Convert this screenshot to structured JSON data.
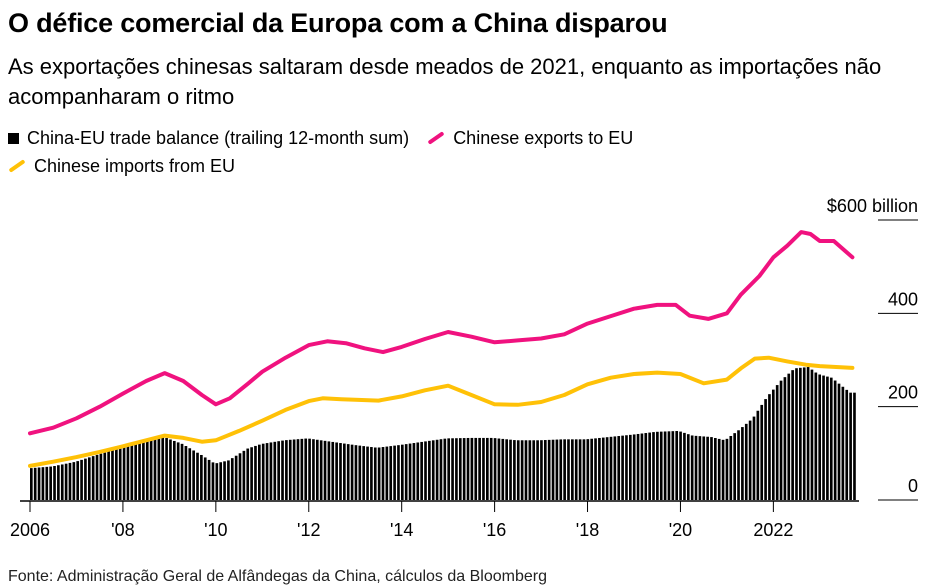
{
  "title": "O défice comercial da Europa com a China disparou",
  "subtitle": "As exportações chinesas saltaram desde meados de 2021, enquanto as importações não acompanharam o ritmo",
  "source": "Fonte: Administração Geral de Alfândegas da China, cálculos da Bloomberg",
  "colors": {
    "balance": "#000000",
    "exports": "#f0127f",
    "imports": "#ffc107"
  },
  "chart_data": {
    "type": "line",
    "bar_series_name": "China-EU trade balance (trailing 12-month sum)",
    "x_range": [
      2006.0,
      2023.8
    ],
    "ylim": [
      0,
      600
    ],
    "y_ticks": [
      {
        "value": 600,
        "label": "$600 billion"
      },
      {
        "value": 400,
        "label": "400"
      },
      {
        "value": 200,
        "label": "200"
      },
      {
        "value": 0,
        "label": "0"
      }
    ],
    "x_ticks": [
      {
        "value": 2006,
        "label": "2006"
      },
      {
        "value": 2008,
        "label": "'08"
      },
      {
        "value": 2010,
        "label": "'10"
      },
      {
        "value": 2012,
        "label": "'12"
      },
      {
        "value": 2014,
        "label": "'14"
      },
      {
        "value": 2016,
        "label": "'16"
      },
      {
        "value": 2018,
        "label": "'18"
      },
      {
        "value": 2020,
        "label": "'20"
      },
      {
        "value": 2022,
        "label": "2022"
      }
    ],
    "series": [
      {
        "name": "Chinese exports to EU",
        "points": [
          [
            2006.0,
            143
          ],
          [
            2006.5,
            155
          ],
          [
            2007.0,
            175
          ],
          [
            2007.5,
            200
          ],
          [
            2008.0,
            228
          ],
          [
            2008.5,
            255
          ],
          [
            2008.9,
            272
          ],
          [
            2009.3,
            255
          ],
          [
            2009.7,
            225
          ],
          [
            2010.0,
            205
          ],
          [
            2010.3,
            218
          ],
          [
            2010.7,
            250
          ],
          [
            2011.0,
            275
          ],
          [
            2011.5,
            305
          ],
          [
            2012.0,
            332
          ],
          [
            2012.4,
            340
          ],
          [
            2012.8,
            336
          ],
          [
            2013.2,
            325
          ],
          [
            2013.6,
            317
          ],
          [
            2014.0,
            328
          ],
          [
            2014.5,
            345
          ],
          [
            2015.0,
            360
          ],
          [
            2015.5,
            350
          ],
          [
            2016.0,
            338
          ],
          [
            2016.5,
            342
          ],
          [
            2017.0,
            346
          ],
          [
            2017.5,
            355
          ],
          [
            2018.0,
            378
          ],
          [
            2018.5,
            394
          ],
          [
            2019.0,
            410
          ],
          [
            2019.5,
            418
          ],
          [
            2019.9,
            418
          ],
          [
            2020.2,
            395
          ],
          [
            2020.6,
            388
          ],
          [
            2021.0,
            400
          ],
          [
            2021.3,
            440
          ],
          [
            2021.7,
            480
          ],
          [
            2022.0,
            520
          ],
          [
            2022.3,
            545
          ],
          [
            2022.6,
            574
          ],
          [
            2022.8,
            570
          ],
          [
            2023.0,
            555
          ],
          [
            2023.3,
            555
          ],
          [
            2023.7,
            520
          ]
        ]
      },
      {
        "name": "Chinese imports from EU",
        "points": [
          [
            2006.0,
            73
          ],
          [
            2006.5,
            82
          ],
          [
            2007.0,
            92
          ],
          [
            2007.5,
            103
          ],
          [
            2008.0,
            115
          ],
          [
            2008.5,
            128
          ],
          [
            2008.9,
            138
          ],
          [
            2009.3,
            133
          ],
          [
            2009.7,
            125
          ],
          [
            2010.0,
            128
          ],
          [
            2010.5,
            148
          ],
          [
            2011.0,
            170
          ],
          [
            2011.5,
            193
          ],
          [
            2012.0,
            212
          ],
          [
            2012.3,
            218
          ],
          [
            2012.7,
            216
          ],
          [
            2013.0,
            215
          ],
          [
            2013.5,
            213
          ],
          [
            2014.0,
            222
          ],
          [
            2014.5,
            235
          ],
          [
            2015.0,
            245
          ],
          [
            2015.5,
            225
          ],
          [
            2016.0,
            205
          ],
          [
            2016.5,
            204
          ],
          [
            2017.0,
            210
          ],
          [
            2017.5,
            225
          ],
          [
            2018.0,
            248
          ],
          [
            2018.5,
            262
          ],
          [
            2019.0,
            270
          ],
          [
            2019.5,
            273
          ],
          [
            2020.0,
            270
          ],
          [
            2020.5,
            250
          ],
          [
            2021.0,
            258
          ],
          [
            2021.3,
            282
          ],
          [
            2021.6,
            303
          ],
          [
            2021.9,
            305
          ],
          [
            2022.3,
            297
          ],
          [
            2022.7,
            290
          ],
          [
            2023.0,
            287
          ],
          [
            2023.7,
            283
          ]
        ]
      }
    ],
    "balance_points": [
      [
        2006.0,
        68
      ],
      [
        2006.5,
        72
      ],
      [
        2007.0,
        82
      ],
      [
        2007.5,
        98
      ],
      [
        2008.0,
        112
      ],
      [
        2008.5,
        128
      ],
      [
        2008.9,
        135
      ],
      [
        2009.3,
        120
      ],
      [
        2009.7,
        97
      ],
      [
        2010.0,
        78
      ],
      [
        2010.3,
        85
      ],
      [
        2010.7,
        110
      ],
      [
        2011.0,
        120
      ],
      [
        2011.5,
        128
      ],
      [
        2012.0,
        132
      ],
      [
        2012.5,
        125
      ],
      [
        2013.0,
        118
      ],
      [
        2013.5,
        112
      ],
      [
        2014.0,
        118
      ],
      [
        2014.5,
        125
      ],
      [
        2015.0,
        132
      ],
      [
        2015.5,
        133
      ],
      [
        2016.0,
        133
      ],
      [
        2016.5,
        128
      ],
      [
        2017.0,
        128
      ],
      [
        2017.5,
        130
      ],
      [
        2018.0,
        130
      ],
      [
        2018.5,
        135
      ],
      [
        2019.0,
        140
      ],
      [
        2019.5,
        146
      ],
      [
        2020.0,
        148
      ],
      [
        2020.3,
        138
      ],
      [
        2020.7,
        135
      ],
      [
        2021.0,
        128
      ],
      [
        2021.3,
        150
      ],
      [
        2021.6,
        175
      ],
      [
        2021.9,
        220
      ],
      [
        2022.2,
        255
      ],
      [
        2022.5,
        282
      ],
      [
        2022.8,
        285
      ],
      [
        2023.0,
        270
      ],
      [
        2023.3,
        262
      ],
      [
        2023.7,
        230
      ]
    ]
  }
}
